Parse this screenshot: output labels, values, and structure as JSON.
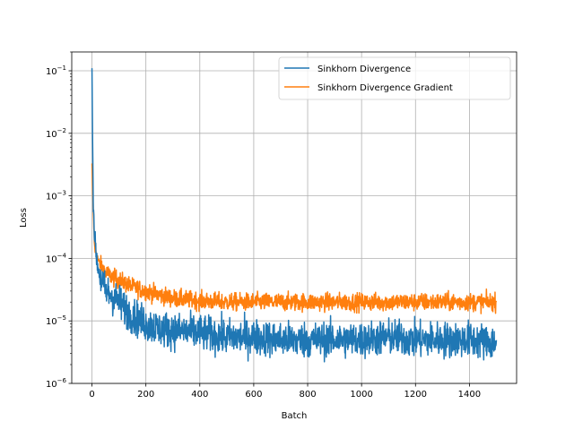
{
  "chart_data": {
    "type": "line",
    "title": "",
    "xlabel": "Batch",
    "ylabel": "Loss",
    "xlim": [
      -75,
      1575
    ],
    "ylim": [
      1e-06,
      0.2
    ],
    "yscale": "log",
    "grid": true,
    "legend_position": "top-right",
    "x_ticks": [
      {
        "value": 0,
        "label": "0"
      },
      {
        "value": 200,
        "label": "200"
      },
      {
        "value": 400,
        "label": "400"
      },
      {
        "value": 600,
        "label": "600"
      },
      {
        "value": 800,
        "label": "800"
      },
      {
        "value": 1000,
        "label": "1000"
      },
      {
        "value": 1200,
        "label": "1200"
      },
      {
        "value": 1400,
        "label": "1400"
      }
    ],
    "y_ticks": [
      {
        "value": 1e-06,
        "base": "10",
        "exp": "−6"
      },
      {
        "value": 1e-05,
        "base": "10",
        "exp": "−5"
      },
      {
        "value": 0.0001,
        "base": "10",
        "exp": "−4"
      },
      {
        "value": 0.001,
        "base": "10",
        "exp": "−3"
      },
      {
        "value": 0.01,
        "base": "10",
        "exp": "−2"
      },
      {
        "value": 0.1,
        "base": "10",
        "exp": "−1"
      }
    ],
    "series": [
      {
        "name": "Sinkhorn Divergence",
        "color": "#1f77b4",
        "x": [
          0,
          2,
          5,
          10,
          20,
          30,
          50,
          75,
          100,
          150,
          200,
          250,
          300,
          400,
          500,
          600,
          700,
          800,
          900,
          1000,
          1100,
          1200,
          1300,
          1400,
          1500
        ],
        "y": [
          0.11,
          0.01,
          0.0008,
          0.0002,
          8e-05,
          5e-05,
          3e-05,
          2.5e-05,
          2e-05,
          1.2e-05,
          9e-06,
          7.5e-06,
          7e-06,
          6.5e-06,
          5.5e-06,
          5.5e-06,
          5e-06,
          5e-06,
          5e-06,
          5e-06,
          5.5e-06,
          5e-06,
          5e-06,
          5e-06,
          4.5e-06
        ],
        "noise_log10": 0.28
      },
      {
        "name": "Sinkhorn Divergence Gradient",
        "color": "#ff7f0e",
        "x": [
          0,
          2,
          5,
          10,
          20,
          30,
          50,
          75,
          100,
          150,
          200,
          250,
          300,
          400,
          500,
          600,
          700,
          800,
          900,
          1000,
          1100,
          1200,
          1300,
          1400,
          1500
        ],
        "y": [
          0.0033,
          0.0015,
          0.0005,
          0.00015,
          0.0001,
          8e-05,
          6e-05,
          5e-05,
          4.5e-05,
          3.5e-05,
          3e-05,
          2.6e-05,
          2.3e-05,
          2.1e-05,
          2e-05,
          2e-05,
          2e-05,
          2e-05,
          2e-05,
          2e-05,
          2e-05,
          2e-05,
          2e-05,
          2e-05,
          2e-05
        ],
        "noise_log10": 0.14
      }
    ]
  }
}
